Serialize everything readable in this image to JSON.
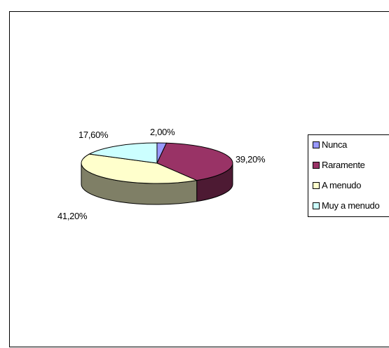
{
  "chart_data": {
    "type": "pie",
    "title": "",
    "categories": [
      "Nunca",
      "Raramente",
      "A menudo",
      "Muy a menudo"
    ],
    "values": [
      2.0,
      39.2,
      41.2,
      17.6
    ],
    "value_labels": [
      "2,00%",
      "39,20%",
      "41,20%",
      "17,60%"
    ],
    "colors": [
      "#9999FF",
      "#993366",
      "#FFFFCC",
      "#CCFFFF"
    ],
    "legend_position": "right",
    "style": "3d-pie"
  },
  "legend": {
    "items": [
      {
        "label": "Nunca",
        "color": "#9999FF"
      },
      {
        "label": "Raramente",
        "color": "#993366"
      },
      {
        "label": "A menudo",
        "color": "#FFFFCC"
      },
      {
        "label": "Muy a menudo",
        "color": "#CCFFFF"
      }
    ]
  }
}
